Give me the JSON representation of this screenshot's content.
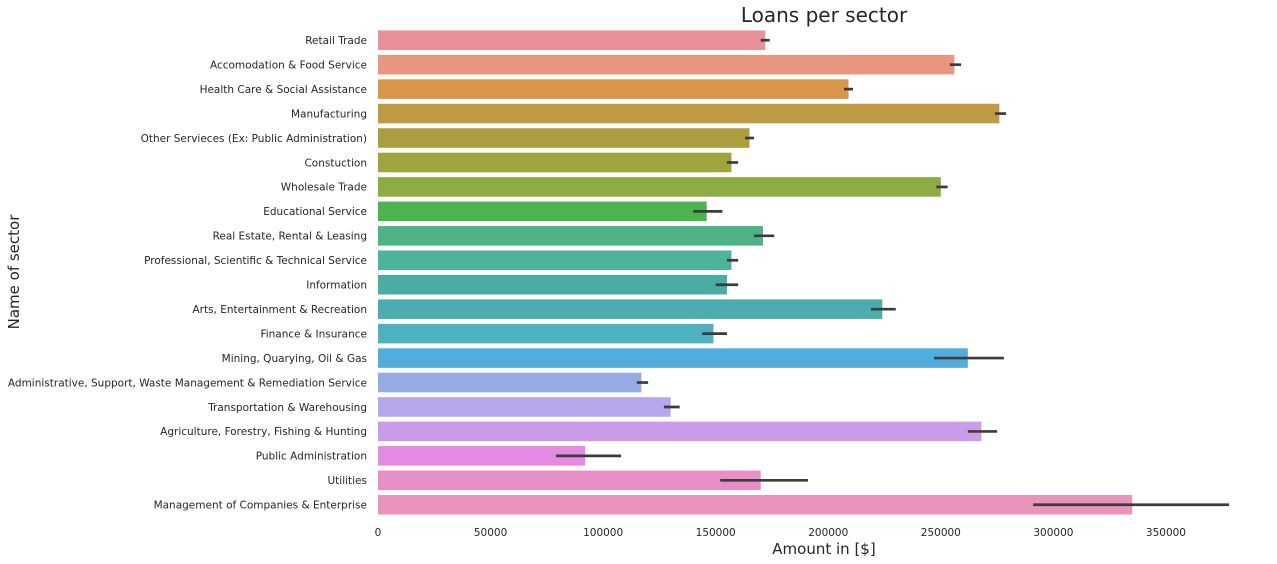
{
  "chart_data": {
    "type": "bar",
    "orientation": "horizontal",
    "title": "Loans per sector",
    "xlabel": "Amount in [$]",
    "ylabel": "Name of sector",
    "xlim": [
      0,
      400000
    ],
    "xticks": [
      0,
      50000,
      100000,
      150000,
      200000,
      250000,
      300000,
      350000
    ],
    "xtick_labels": [
      "0",
      "50000",
      "100000",
      "150000",
      "200000",
      "250000",
      "300000",
      "350000"
    ],
    "grid": false,
    "legend": "none",
    "error_bars": true,
    "categories": [
      "Retail Trade",
      "Accomodation & Food Service",
      "Health Care & Social Assistance",
      "Manufacturing",
      "Other Servieces (Ex: Public Administration)",
      "Constuction",
      "Wholesale Trade",
      "Educational Service",
      "Real Estate, Rental & Leasing",
      "Professional, Scientific & Technical Service",
      "Information",
      "Arts, Entertainment & Recreation",
      "Finance & Insurance",
      "Mining, Quarying, Oil & Gas",
      "Administrative, Support, Waste Management & Remediation Service",
      "Transportation & Warehousing",
      "Agriculture, Forestry, Fishing & Hunting",
      "Public Administration",
      "Utilities",
      "Management of Companies & Enterprise"
    ],
    "values": [
      172000,
      256000,
      209000,
      276000,
      165000,
      157000,
      250000,
      146000,
      171000,
      157000,
      155000,
      224000,
      149000,
      262000,
      117000,
      130000,
      268000,
      92000,
      170000,
      335000
    ],
    "ci": [
      [
        170000,
        174000
      ],
      [
        254000,
        259000
      ],
      [
        207000,
        211000
      ],
      [
        274000,
        279000
      ],
      [
        163000,
        167000
      ],
      [
        155000,
        160000
      ],
      [
        248000,
        253000
      ],
      [
        140000,
        153000
      ],
      [
        167000,
        176000
      ],
      [
        155000,
        160000
      ],
      [
        150000,
        160000
      ],
      [
        219000,
        230000
      ],
      [
        144000,
        155000
      ],
      [
        247000,
        278000
      ],
      [
        115000,
        120000
      ],
      [
        127000,
        134000
      ],
      [
        262000,
        275000
      ],
      [
        79000,
        108000
      ],
      [
        152000,
        191000
      ],
      [
        291000,
        378000
      ]
    ],
    "colors": [
      "#e8919a",
      "#e89680",
      "#d9964a",
      "#bf9a45",
      "#ac9d3e",
      "#a1a33f",
      "#8bad44",
      "#4db34f",
      "#4db386",
      "#4db39a",
      "#4aada3",
      "#4cadb0",
      "#4db1c0",
      "#52addd",
      "#96abe6",
      "#b5a7ea",
      "#c99be8",
      "#e48ae2",
      "#e88fc7",
      "#e993bd"
    ],
    "errorbar_color": "#3c3c3c"
  }
}
